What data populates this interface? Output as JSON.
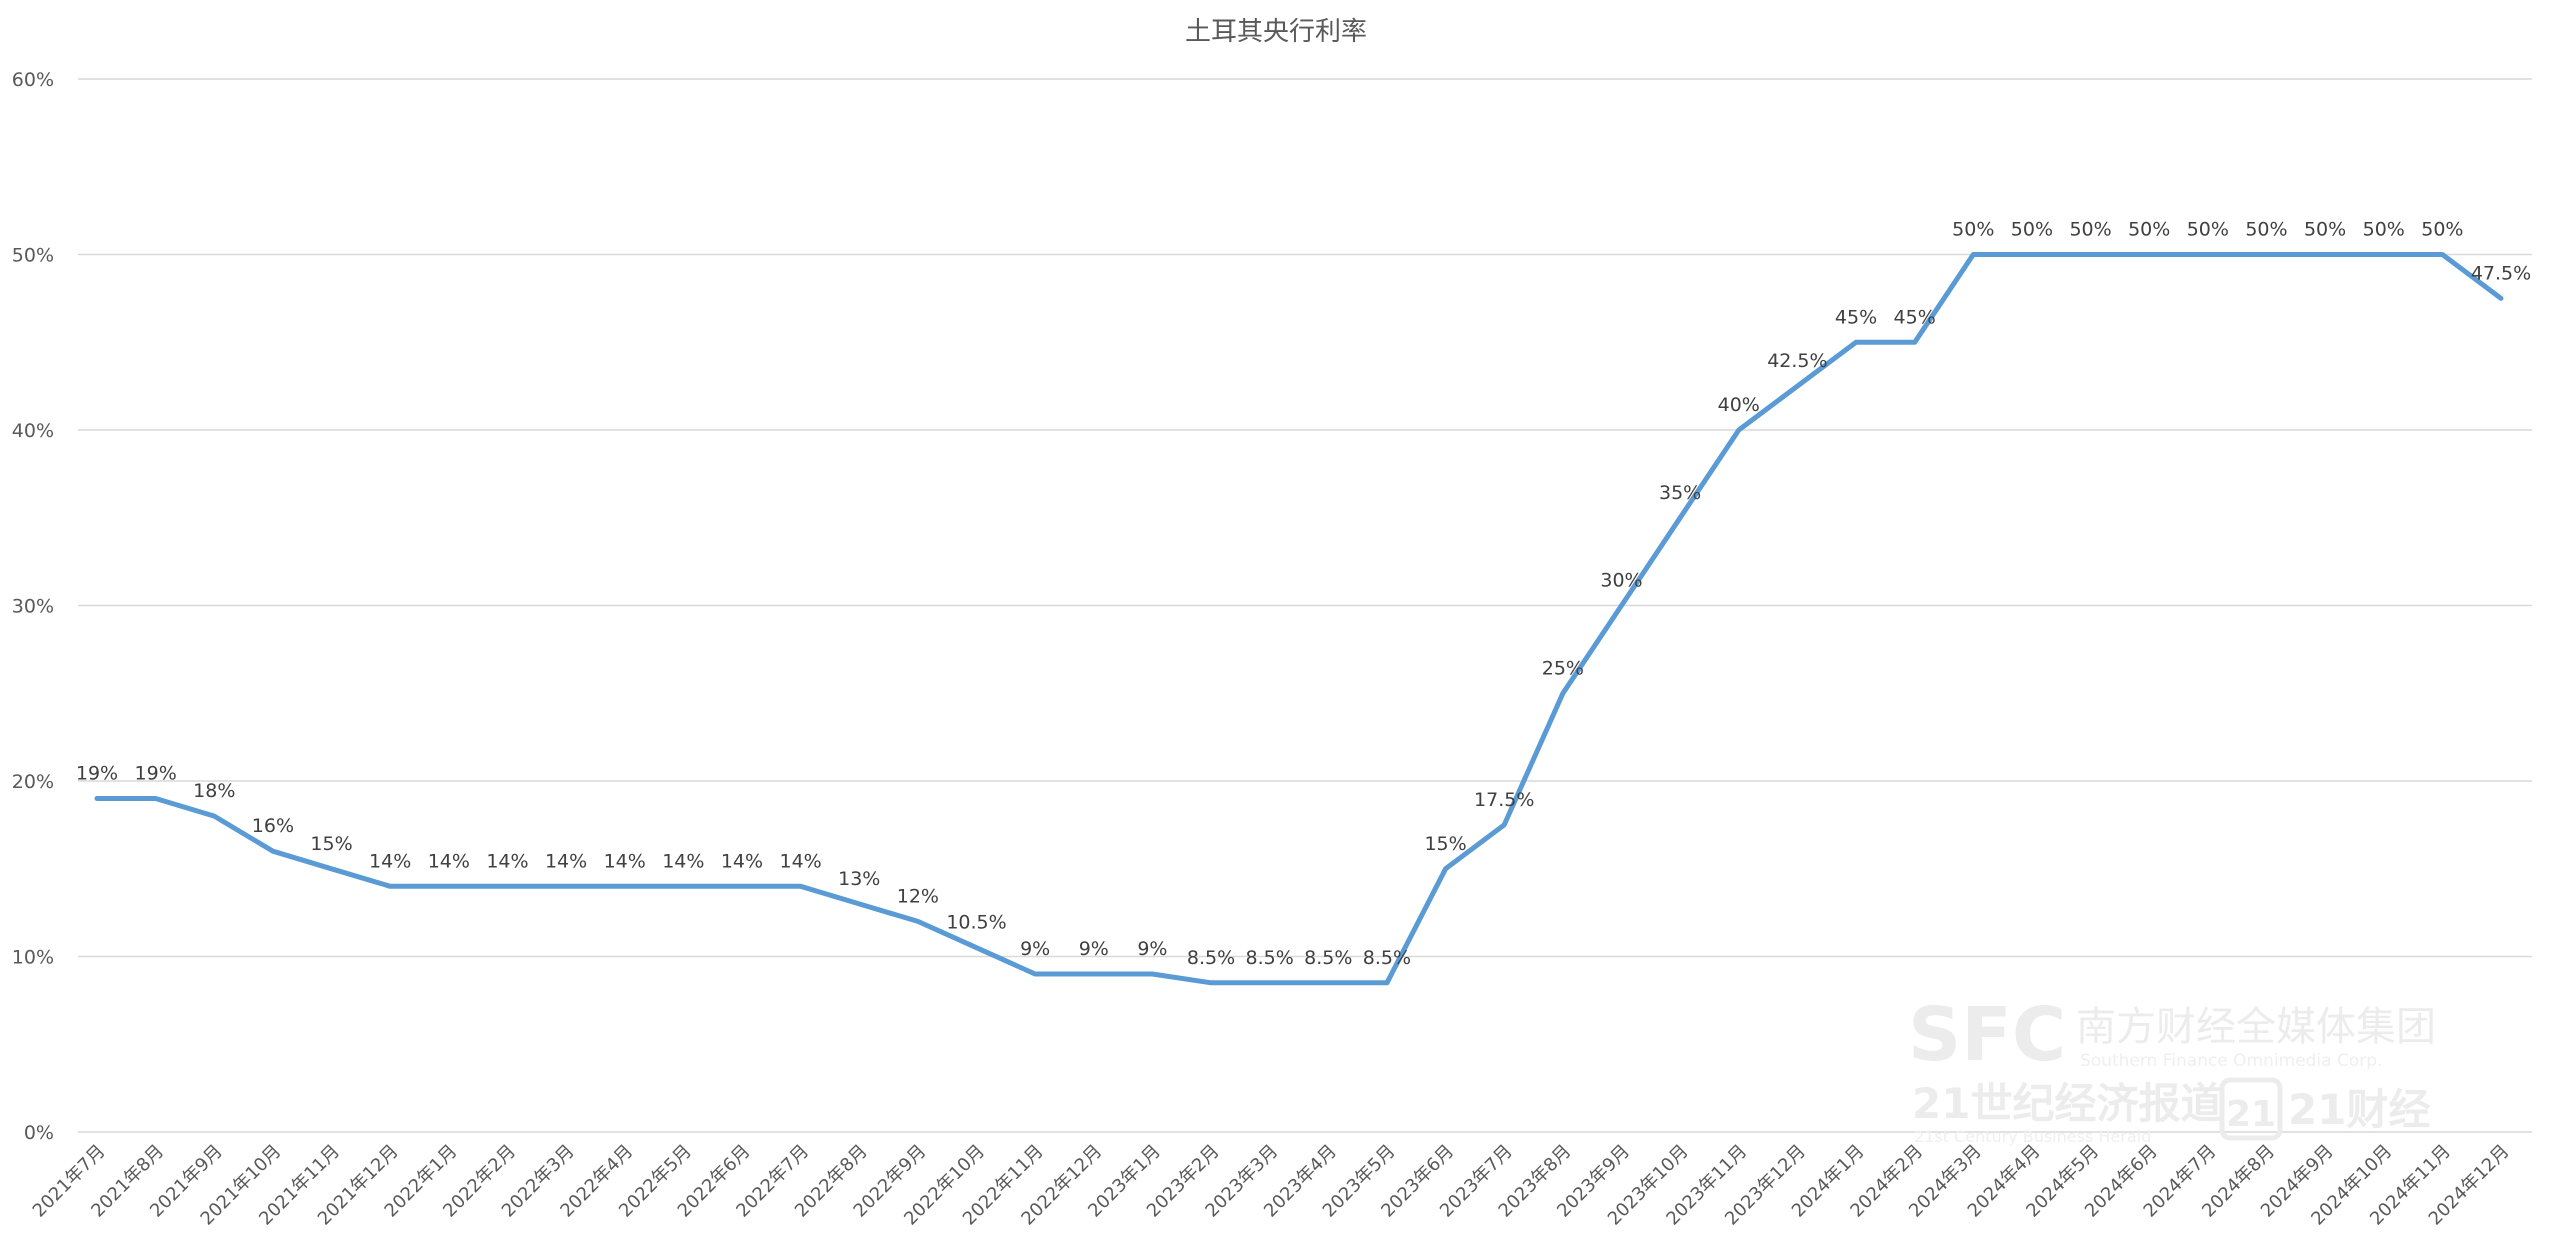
{
  "chart_data": {
    "type": "line",
    "title": "土耳其央行利率",
    "xlabel": "",
    "ylabel": "",
    "ylim": [
      0,
      60
    ],
    "yticks": [
      0,
      10,
      20,
      30,
      40,
      50,
      60
    ],
    "ytick_format": "%",
    "grid": true,
    "legend": "none",
    "categories": [
      "2021年7月",
      "2021年8月",
      "2021年9月",
      "2021年10月",
      "2021年11月",
      "2021年12月",
      "2022年1月",
      "2022年2月",
      "2022年3月",
      "2022年4月",
      "2022年5月",
      "2022年6月",
      "2022年7月",
      "2022年8月",
      "2022年9月",
      "2022年10月",
      "2022年11月",
      "2022年12月",
      "2023年1月",
      "2023年2月",
      "2023年3月",
      "2023年4月",
      "2023年5月",
      "2023年6月",
      "2023年7月",
      "2023年8月",
      "2023年9月",
      "2023年10月",
      "2023年11月",
      "2023年12月",
      "2024年1月",
      "2024年2月",
      "2024年3月",
      "2024年4月",
      "2024年5月",
      "2024年6月",
      "2024年7月",
      "2024年8月",
      "2024年9月",
      "2024年10月",
      "2024年11月",
      "2024年12月"
    ],
    "series": [
      {
        "color": "#5b9bd5",
        "values": [
          19,
          19,
          18,
          16,
          15,
          14,
          14,
          14,
          14,
          14,
          14,
          14,
          14,
          13,
          12,
          10.5,
          9,
          9,
          9,
          8.5,
          8.5,
          8.5,
          8.5,
          15,
          17.5,
          25,
          30,
          35,
          40,
          42.5,
          45,
          45,
          50,
          50,
          50,
          50,
          50,
          50,
          50,
          50,
          50,
          47.5
        ],
        "labels": [
          "19%",
          "19%",
          "18%",
          "16%",
          "15%",
          "14%",
          "14%",
          "14%",
          "14%",
          "14%",
          "14%",
          "14%",
          "14%",
          "13%",
          "12%",
          "10.5%",
          "9%",
          "9%",
          "9%",
          "8.5%",
          "8.5%",
          "8.5%",
          "8.5%",
          "15%",
          "17.5%",
          "25%",
          "30%",
          "35%",
          "40%",
          "42.5%",
          "45%",
          "45%",
          "50%",
          "50%",
          "50%",
          "50%",
          "50%",
          "50%",
          "50%",
          "50%",
          "50%",
          "47.5%"
        ]
      }
    ]
  },
  "colors": {
    "series": "#5b9bd5",
    "grid": "#d9d9d9",
    "axis_text": "#595959",
    "label_text": "#404040",
    "watermark": "#e9e9e9"
  },
  "watermark": {
    "logo_text": "SFC",
    "org": "南方财经全媒体集团",
    "org_en": "Southern Finance Omnimedia Corp.",
    "paper": "21世纪经济报道",
    "paper_en": "21st Century Business Herald",
    "app_badge": "21",
    "app_name": "21财经"
  }
}
